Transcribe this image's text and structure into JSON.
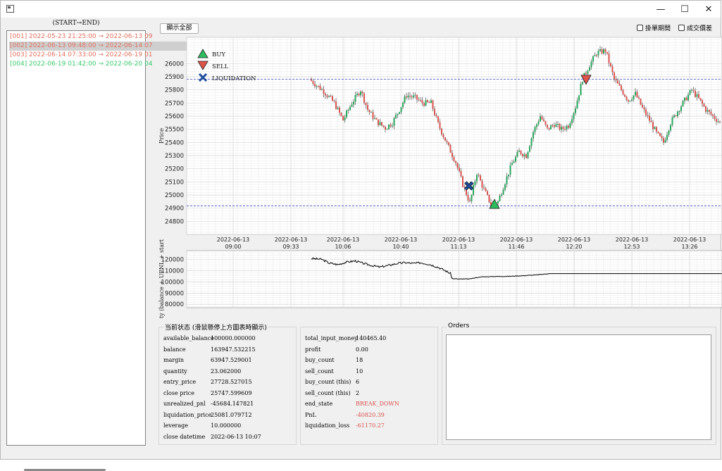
{
  "window": {
    "buttons": {
      "minimize": "—",
      "maximize": "☐",
      "close": "✕"
    }
  },
  "left_panel": {
    "header": "(START→END)",
    "items": [
      {
        "text": "[001] 2022-05-23 21:25:00 → 2022-06-13 09",
        "color": "#e0705c"
      },
      {
        "text": "[002] 2022-06-13 09:48:00 → 2022-06-14 07",
        "color": "#e0705c",
        "selected": true
      },
      {
        "text": "[003] 2022-06-14 07:33:00 → 2022-06-19 01",
        "color": "#e0705c"
      },
      {
        "text": "[004] 2022-06-19 01:42:00 → 2022-06-20 04",
        "color": "#38c96b"
      }
    ]
  },
  "toolbar": {
    "show_all_label": "顯示全部",
    "checkbox_pending_orders": "掛單期間",
    "checkbox_trade_spread": "成交價差"
  },
  "chart_data": [
    {
      "type": "candlestick",
      "ylabel": "Price",
      "ylim": [
        24700,
        26200
      ],
      "yticks": [
        24800,
        24900,
        25000,
        25100,
        25200,
        25300,
        25400,
        25500,
        25600,
        25700,
        25800,
        25900,
        26000
      ],
      "xticks": [
        [
          "2022-06-13",
          "09:00"
        ],
        [
          "2022-06-13",
          "09:33"
        ],
        [
          "2022-06-13",
          "10:06"
        ],
        [
          "2022-06-13",
          "10:40"
        ],
        [
          "2022-06-13",
          "11:13"
        ],
        [
          "2022-06-13",
          "11:46"
        ],
        [
          "2022-06-13",
          "12:20"
        ],
        [
          "2022-06-13",
          "12:53"
        ],
        [
          "2022-06-13",
          "13:26"
        ]
      ],
      "legend": {
        "placement": "top-left",
        "items": [
          "BUY",
          "SELL",
          "LIQUIDATION"
        ]
      },
      "colors": {
        "up": "#26a65b",
        "down": "#d9534f",
        "buy": "#2dbd5f",
        "sell": "#e0534a",
        "liquidation": "#1f4e9c",
        "hline": "#3b4bbf"
      },
      "hlines": [
        25882,
        24918
      ],
      "price_path": [
        [
          0,
          25880
        ],
        [
          8,
          25790
        ],
        [
          14,
          25700
        ],
        [
          19,
          25570
        ],
        [
          24,
          25700
        ],
        [
          29,
          25800
        ],
        [
          33,
          25650
        ],
        [
          38,
          25560
        ],
        [
          43,
          25510
        ],
        [
          47,
          25550
        ],
        [
          51,
          25650
        ],
        [
          55,
          25760
        ],
        [
          60,
          25740
        ],
        [
          64,
          25700
        ],
        [
          69,
          25700
        ],
        [
          73,
          25540
        ],
        [
          78,
          25390
        ],
        [
          83,
          25250
        ],
        [
          87,
          25080
        ],
        [
          91,
          24940
        ],
        [
          95,
          25170
        ],
        [
          99,
          25040
        ],
        [
          103,
          24930
        ],
        [
          107,
          24950
        ],
        [
          111,
          25100
        ],
        [
          115,
          25240
        ],
        [
          119,
          25330
        ],
        [
          123,
          25300
        ],
        [
          127,
          25480
        ],
        [
          131,
          25600
        ],
        [
          135,
          25500
        ],
        [
          139,
          25540
        ],
        [
          143,
          25500
        ],
        [
          147,
          25530
        ],
        [
          151,
          25670
        ],
        [
          155,
          25880
        ],
        [
          159,
          25990
        ],
        [
          163,
          26080
        ],
        [
          168,
          26100
        ],
        [
          173,
          25880
        ],
        [
          177,
          25800
        ],
        [
          181,
          25720
        ],
        [
          185,
          25770
        ],
        [
          189,
          25660
        ],
        [
          193,
          25570
        ],
        [
          197,
          25470
        ],
        [
          201,
          25400
        ],
        [
          205,
          25550
        ],
        [
          209,
          25640
        ],
        [
          213,
          25720
        ],
        [
          217,
          25800
        ],
        [
          221,
          25730
        ],
        [
          225,
          25650
        ],
        [
          229,
          25600
        ],
        [
          234,
          25540
        ]
      ],
      "markers": [
        {
          "type": "liquidation",
          "x": 89.5,
          "price": 25070
        },
        {
          "type": "buy",
          "x": 104,
          "price": 24930
        },
        {
          "type": "sell",
          "x": 156,
          "price": 25880
        }
      ]
    },
    {
      "type": "line",
      "ylabel": "ty (balance + UPNL + start",
      "ylim": [
        77000,
        128000
      ],
      "yticks": [
        80000,
        90000,
        100000,
        110000,
        120000
      ],
      "color": "#000000",
      "points": [
        [
          0,
          121000
        ],
        [
          6,
          120200
        ],
        [
          10,
          117000
        ],
        [
          15,
          115500
        ],
        [
          20,
          117800
        ],
        [
          25,
          118800
        ],
        [
          29,
          116800
        ],
        [
          34,
          114800
        ],
        [
          39,
          113300
        ],
        [
          44,
          114900
        ],
        [
          49,
          116600
        ],
        [
          53,
          117300
        ],
        [
          58,
          116600
        ],
        [
          62,
          117200
        ],
        [
          67,
          115800
        ],
        [
          72,
          113100
        ],
        [
          76,
          110100
        ],
        [
          79,
          107500
        ],
        [
          80,
          103000
        ],
        [
          84,
          102600
        ],
        [
          90,
          102700
        ],
        [
          96,
          104500
        ],
        [
          104,
          104900
        ],
        [
          112,
          105000
        ],
        [
          120,
          105600
        ],
        [
          127,
          106200
        ],
        [
          131,
          106800
        ],
        [
          135,
          107500
        ],
        [
          150,
          107500
        ],
        [
          234,
          107500
        ]
      ]
    }
  ],
  "status_panel": {
    "title": "当前状态 (滑鼠懸停上方圖表時顯示)",
    "left_rows": [
      {
        "key": "available_balance",
        "value": "100000.000000"
      },
      {
        "key": "balance",
        "value": "163947.532215"
      },
      {
        "key": "margin",
        "value": "63947.529001"
      },
      {
        "key": "quantity",
        "value": "23.062000"
      },
      {
        "key": "entry_price",
        "value": "27728.527015"
      },
      {
        "key": "close price",
        "value": "25747.599609"
      },
      {
        "key": "unrealized_pnl",
        "value": "-45684.147821"
      },
      {
        "key": "liquidation_price",
        "value": "25081.079712"
      },
      {
        "key": "leverage",
        "value": "10.000000"
      },
      {
        "key": "close datetime",
        "value": "2022-06-13 10:07"
      }
    ],
    "right_rows": [
      {
        "key": "total_input_money",
        "value": "140465.40"
      },
      {
        "key": "profit",
        "value": "0.00"
      },
      {
        "key": "buy_count",
        "value": "18"
      },
      {
        "key": "sell_count",
        "value": "10"
      },
      {
        "key": "buy_count (this)",
        "value": "6"
      },
      {
        "key": "sell_count (this)",
        "value": "2"
      },
      {
        "key": "end_state",
        "value": "BREAK_DOWN",
        "red": true
      },
      {
        "key": "PnL",
        "value": "-40820.39",
        "red": true
      },
      {
        "key": "liquidation_loss",
        "value": "-61170.27",
        "red": true
      }
    ]
  },
  "orders_panel": {
    "title": "Orders"
  }
}
